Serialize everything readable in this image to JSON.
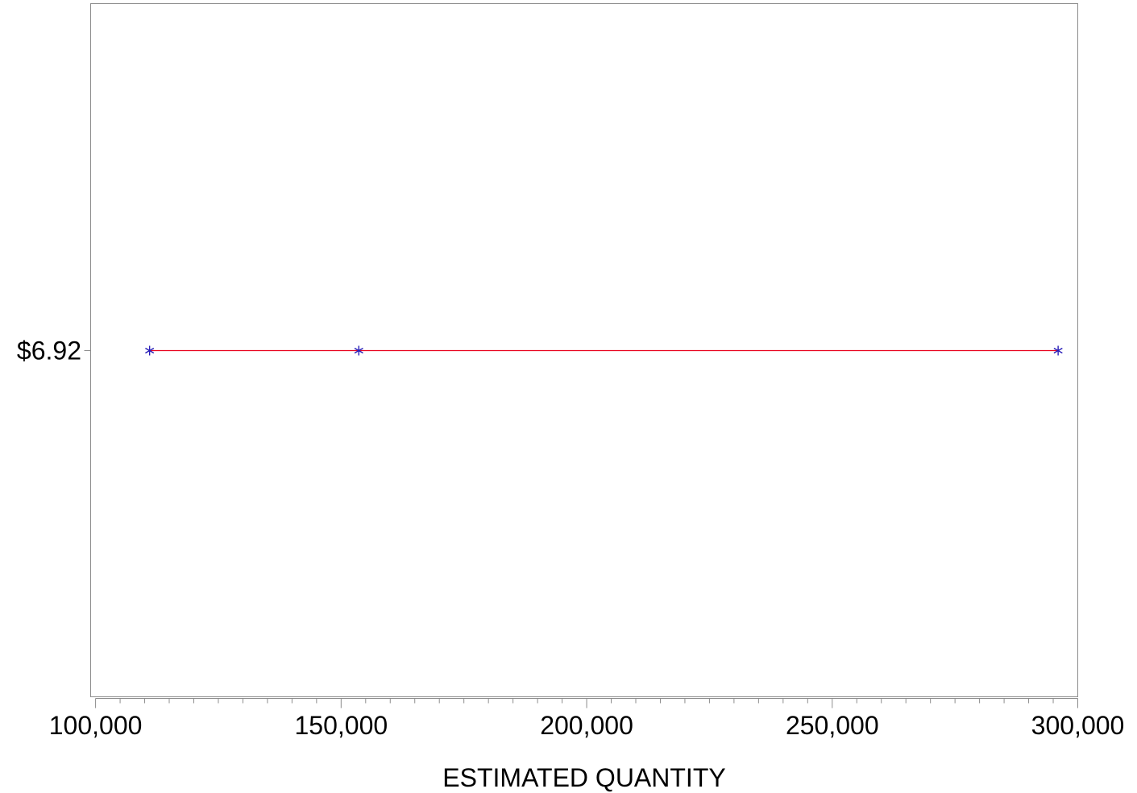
{
  "chart_data": {
    "type": "line",
    "title": "",
    "xlabel": "ESTIMATED QUANTITY",
    "ylabel": "",
    "xlim": [
      99000,
      300000
    ],
    "x_ticks": [
      100000,
      150000,
      200000,
      250000,
      300000
    ],
    "x_tick_labels": [
      "100,000",
      "150,000",
      "200,000",
      "250,000",
      "300,000"
    ],
    "x_minor_step": 5000,
    "y_ticks": [
      6.92
    ],
    "y_tick_labels": [
      "$6.92"
    ],
    "grid": false,
    "series": [
      {
        "x": [
          111000,
          153600,
          296000
        ],
        "y": [
          6.92,
          6.92,
          6.92
        ],
        "line_color": "#e8001c",
        "marker": "asterisk",
        "marker_color": "#2a1fb8"
      }
    ]
  }
}
